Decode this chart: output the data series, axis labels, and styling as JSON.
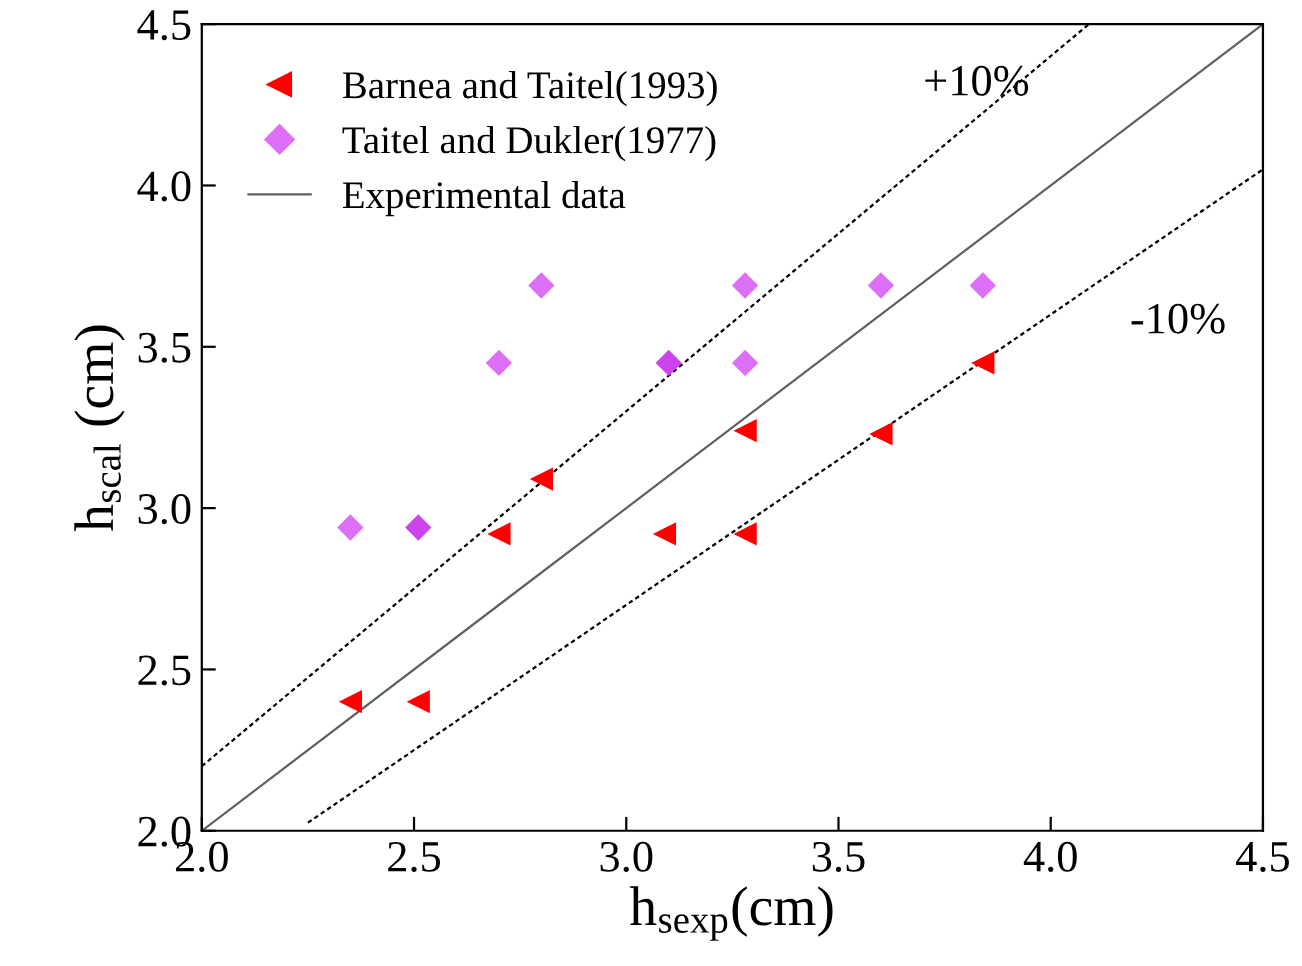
{
  "chart_data": {
    "type": "scatter",
    "xlabel": "h$_{sexp}$(cm)",
    "ylabel": "h$_{scal}$ (cm)",
    "xlim": [
      2.0,
      4.5
    ],
    "ylim": [
      2.0,
      4.5
    ],
    "xticks": [
      {
        "value": 2,
        "label": "2.0"
      },
      2.5,
      {
        "value": 3,
        "label": "3.0"
      },
      3.5,
      {
        "value": 4,
        "label": "4.0"
      },
      4.5
    ],
    "yticks": [
      {
        "value": 2,
        "label": "2.0"
      },
      2.5,
      {
        "value": 3,
        "label": "3.0"
      },
      3.5,
      {
        "value": 4,
        "label": "4.0"
      },
      4.5
    ],
    "grid": false,
    "legend": "top left",
    "annotations": [
      "+10%",
      "-10%"
    ],
    "series": [
      {
        "name": "Barnea and Taitel(1993)",
        "marker": "triangle",
        "color": "#ff0000",
        "x": [
          2.35,
          2.51,
          2.7,
          2.8,
          3.09,
          3.28,
          3.28,
          3.6,
          3.84
        ],
        "values": [
          2.4,
          2.4,
          2.92,
          3.09,
          2.92,
          3.24,
          2.92,
          3.23,
          3.45
        ]
      },
      {
        "name": "Taitel and Dukler(1977)",
        "marker": "diamond",
        "color": "#dd6ff7",
        "colors": [
          "#dd6ff7",
          "#cc44ee",
          "#dd6ff7",
          "#dd6ff7",
          "#cc44ee",
          "#dd6ff7",
          "#dd6ff7",
          "#dd6ff7",
          "#dd6ff7"
        ],
        "x": [
          2.35,
          2.51,
          2.7,
          2.8,
          3.1,
          3.28,
          3.28,
          3.6,
          3.84
        ],
        "values": [
          2.94,
          2.94,
          3.45,
          3.69,
          3.45,
          3.69,
          3.45,
          3.69,
          3.69
        ]
      },
      {
        "name": "Experimental data",
        "type": "line",
        "marker": "none",
        "line_style": "solid",
        "color": "#606060",
        "x": [
          2.0,
          4.5
        ],
        "values": [
          2.0,
          4.5
        ]
      },
      {
        "type": "line",
        "marker": "none",
        "line_style": "dotted",
        "color": "#000000",
        "x": [
          2.0,
          4.09
        ],
        "values": [
          2.2,
          4.5
        ]
      },
      {
        "type": "line",
        "marker": "none",
        "line_style": "dotted",
        "color": "#000000",
        "x": [
          2.25,
          4.5
        ],
        "values": [
          2.025,
          4.05
        ]
      }
    ]
  }
}
